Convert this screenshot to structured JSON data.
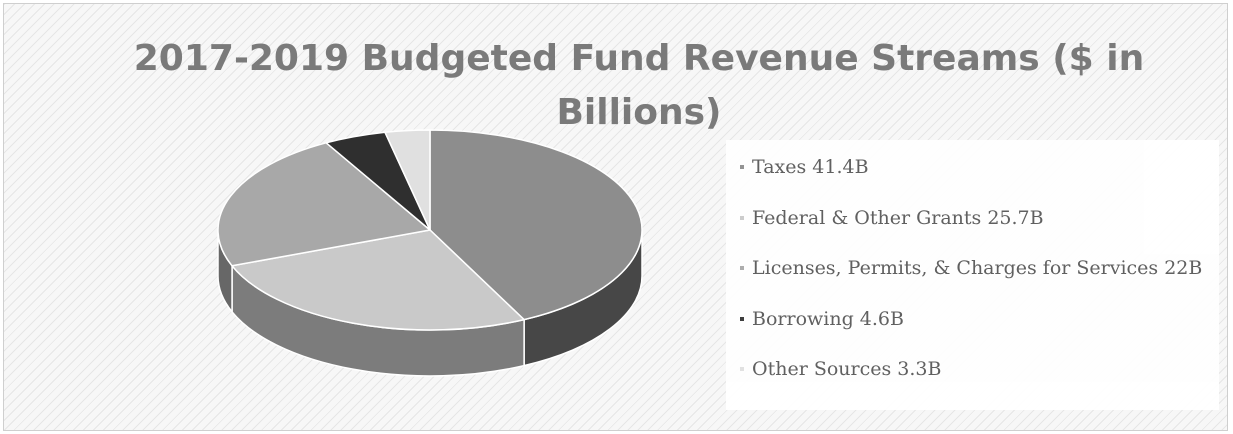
{
  "chart_data": {
    "type": "pie",
    "title": "2017-2019 Budgeted Fund Revenue Streams ($ in Billions)",
    "unit": "$ Billions",
    "three_d": true,
    "legend_position": "right",
    "slices": [
      {
        "name": "Taxes",
        "value": 41.4,
        "label": "Taxes 41.4B",
        "color": "#8d8d8d",
        "side_color": "#474747"
      },
      {
        "name": "Federal & Other Grants",
        "value": 25.7,
        "label": "Federal & Other Grants 25.7B",
        "color": "#c9c9c9",
        "side_color": "#7c7c7c"
      },
      {
        "name": "Licenses, Permits, & Charges for Services",
        "value": 22,
        "label": "Licenses, Permits, & Charges for Services 22B",
        "color": "#a8a8a8",
        "side_color": "#676767"
      },
      {
        "name": "Borrowing",
        "value": 4.6,
        "label": "Borrowing 4.6B",
        "color": "#2f2f2f",
        "side_color": "#1b1b1b"
      },
      {
        "name": "Other Sources",
        "value": 3.3,
        "label": "Other Sources 3.3B",
        "color": "#e0e0e0",
        "side_color": "#b0b0b0"
      }
    ]
  }
}
